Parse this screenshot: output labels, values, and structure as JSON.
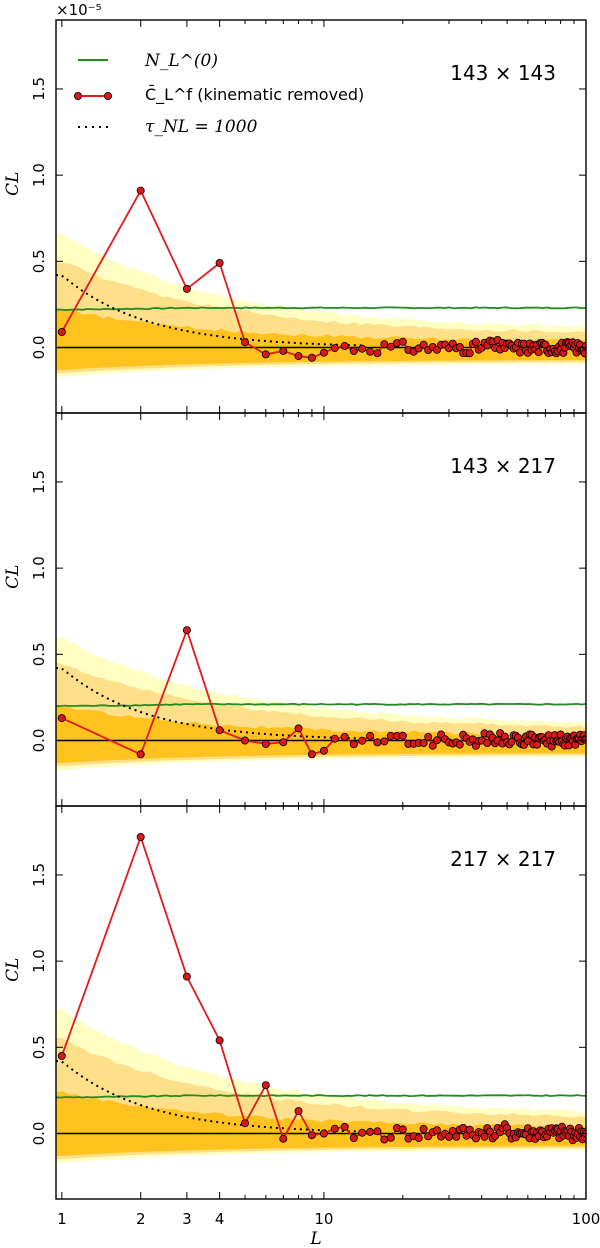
{
  "chart_data": {
    "type": "line",
    "x_scale": "log",
    "xlim": [
      0.95,
      100
    ],
    "ylim": [
      -0.38,
      1.9
    ],
    "y_multiplier_label": "×10⁻⁵",
    "xlabel": "L",
    "ylabel": "C_L",
    "x_ticks": [
      1,
      2,
      3,
      4,
      10,
      100
    ],
    "x_tick_labels": [
      "1",
      "2",
      "3",
      "4",
      "10",
      "100"
    ],
    "y_ticks": [
      0.0,
      0.5,
      1.0,
      1.5
    ],
    "y_tick_labels": [
      "0.0",
      "0.5",
      "1.0",
      "1.5"
    ],
    "legend": {
      "placement": "top-left",
      "entries": [
        {
          "label": "N_L^(0)",
          "color": "#228B22",
          "style": "line"
        },
        {
          "label": "C̄_L^f (kinematic removed)",
          "color": "#e31a1c",
          "style": "line-marker"
        },
        {
          "label": "τ_NL = 1000",
          "color": "#000000",
          "style": "dotted"
        }
      ]
    },
    "colors": {
      "band_outer": "#ffffc4",
      "band_middle": "#ffe08a",
      "band_inner": "#ffc21f",
      "noise": "#228B22",
      "data_line": "#e31a1c",
      "marker_fill": "#d7191c",
      "model": "#000000"
    },
    "model_tau": {
      "name": "τ_NL = 1000",
      "amplitude_L1": 0.42
    },
    "panels": [
      {
        "title": "143 × 143",
        "noise_level": 0.23,
        "bands": {
          "outer": [
            0.66,
            -0.17
          ],
          "middle": [
            0.5,
            -0.15
          ],
          "inner": [
            0.22,
            -0.13
          ]
        },
        "low_L": {
          "x": [
            1,
            2,
            3,
            4,
            5,
            6,
            7,
            8,
            9,
            10
          ],
          "y": [
            0.09,
            0.91,
            0.34,
            0.49,
            0.03,
            -0.04,
            -0.02,
            -0.05,
            -0.06,
            -0.03
          ]
        },
        "high_L_scatter": 0.035
      },
      {
        "title": "143 × 217",
        "noise_level": 0.21,
        "bands": {
          "outer": [
            0.6,
            -0.17
          ],
          "middle": [
            0.45,
            -0.15
          ],
          "inner": [
            0.2,
            -0.13
          ]
        },
        "low_L": {
          "x": [
            1,
            2,
            3,
            4,
            5,
            6,
            7,
            8,
            9,
            10
          ],
          "y": [
            0.13,
            -0.08,
            0.64,
            0.06,
            0.0,
            -0.02,
            -0.01,
            0.07,
            -0.08,
            -0.06
          ]
        },
        "high_L_scatter": 0.035
      },
      {
        "title": "217 × 217",
        "noise_level": 0.22,
        "bands": {
          "outer": [
            0.72,
            -0.17
          ],
          "middle": [
            0.55,
            -0.15
          ],
          "inner": [
            0.24,
            -0.13
          ]
        },
        "low_L": {
          "x": [
            1,
            2,
            3,
            4,
            5,
            6,
            7,
            8,
            9,
            10
          ],
          "y": [
            0.45,
            1.72,
            0.91,
            0.54,
            0.06,
            0.28,
            -0.03,
            0.13,
            -0.01,
            0.0
          ]
        },
        "high_L_scatter": 0.04
      }
    ]
  }
}
